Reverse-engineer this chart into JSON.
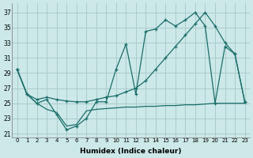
{
  "xlabel": "Humidex (Indice chaleur)",
  "bg_color": "#cce8e8",
  "line_color": "#1a6e6a",
  "grid_color": "#aacccc",
  "xlim": [
    -0.5,
    23.5
  ],
  "ylim": [
    20.5,
    38.2
  ],
  "yticks": [
    21,
    23,
    25,
    27,
    29,
    31,
    33,
    35,
    37
  ],
  "xticks": [
    0,
    1,
    2,
    3,
    4,
    5,
    6,
    7,
    8,
    9,
    10,
    11,
    12,
    13,
    14,
    15,
    16,
    17,
    18,
    19,
    20,
    21,
    22,
    23
  ],
  "curve1_x": [
    0,
    1,
    2,
    3,
    4,
    5,
    6,
    7,
    8,
    9,
    10,
    11,
    12,
    13,
    14,
    15,
    16,
    17,
    18,
    19,
    20,
    21,
    22,
    23
  ],
  "curve1_y": [
    29.5,
    26.2,
    25.0,
    25.5,
    23.5,
    21.5,
    22.0,
    23.0,
    25.2,
    25.2,
    29.5,
    32.8,
    26.2,
    34.5,
    34.8,
    36.0,
    35.2,
    36.0,
    37.0,
    35.2,
    25.0,
    32.5,
    31.5,
    25.2
  ],
  "curve2_x": [
    0,
    1,
    2,
    3,
    4,
    5,
    6,
    7,
    8,
    9,
    10,
    11,
    12,
    13,
    14,
    15,
    16,
    17,
    18,
    19,
    20,
    21,
    22,
    23
  ],
  "curve2_y": [
    29.5,
    26.2,
    25.5,
    25.8,
    25.5,
    25.3,
    25.2,
    25.2,
    25.5,
    25.8,
    26.0,
    26.5,
    27.0,
    28.0,
    29.5,
    31.0,
    32.5,
    34.0,
    35.5,
    37.0,
    35.2,
    33.0,
    31.5,
    25.2
  ],
  "curve3_x": [
    0,
    1,
    2,
    3,
    4,
    5,
    6,
    7,
    8,
    9,
    10,
    11,
    12,
    13,
    14,
    15,
    16,
    17,
    18,
    19,
    20,
    21,
    22,
    23
  ],
  "curve3_y": [
    29.5,
    26.2,
    25.0,
    24.2,
    23.8,
    22.0,
    22.2,
    24.0,
    24.2,
    24.3,
    24.4,
    24.5,
    24.5,
    24.6,
    24.6,
    24.7,
    24.7,
    24.8,
    24.8,
    24.9,
    25.0,
    25.0,
    25.0,
    25.0
  ]
}
